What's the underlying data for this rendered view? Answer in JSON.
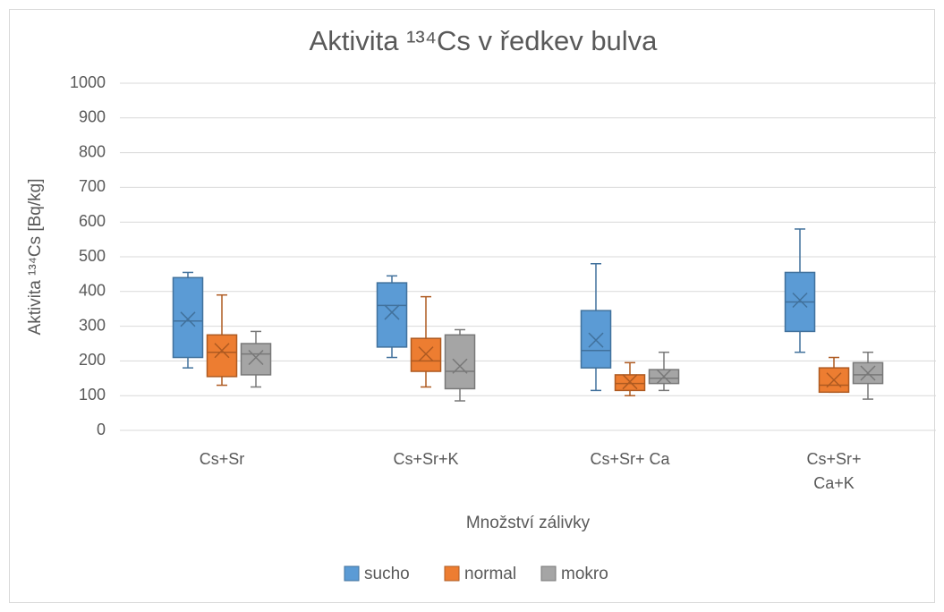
{
  "chart_data": {
    "type": "box",
    "title": "Aktivita ¹³⁴Cs v ředkev bulva",
    "y_label": "Aktivita ¹³⁴Cs [Bq/kg]",
    "x_label": "Množství zálivky",
    "categories": [
      [
        "Cs+Sr"
      ],
      [
        "Cs+Sr+K"
      ],
      [
        "Cs+Sr+  Ca"
      ],
      [
        "Cs+Sr+",
        "Ca+K"
      ]
    ],
    "ylim": [
      0,
      1000
    ],
    "yticks": [
      0,
      100,
      200,
      300,
      400,
      500,
      600,
      700,
      800,
      900,
      1000
    ],
    "grid": true,
    "legend": "bottom",
    "series": [
      {
        "name": "sucho",
        "color": "#5b9bd5",
        "edge": "#41719c",
        "min": [
          180,
          210,
          115,
          225
        ],
        "q1": [
          210,
          240,
          180,
          285
        ],
        "median": [
          315,
          360,
          230,
          370
        ],
        "q3": [
          440,
          425,
          345,
          455
        ],
        "max": [
          455,
          445,
          480,
          580
        ],
        "mean": [
          320,
          340,
          260,
          375
        ]
      },
      {
        "name": "normal",
        "color": "#ed7d31",
        "edge": "#ae5a21",
        "min": [
          130,
          125,
          100,
          110
        ],
        "q1": [
          155,
          170,
          115,
          110
        ],
        "median": [
          225,
          200,
          135,
          130
        ],
        "q3": [
          275,
          265,
          160,
          180
        ],
        "max": [
          390,
          385,
          195,
          210
        ],
        "mean": [
          230,
          220,
          140,
          145
        ]
      },
      {
        "name": "mokro",
        "color": "#a5a5a5",
        "edge": "#787878",
        "min": [
          125,
          85,
          115,
          90
        ],
        "q1": [
          160,
          120,
          135,
          135
        ],
        "median": [
          220,
          170,
          150,
          160
        ],
        "q3": [
          250,
          275,
          175,
          195
        ],
        "max": [
          285,
          290,
          225,
          225
        ],
        "mean": [
          210,
          185,
          155,
          165
        ]
      }
    ]
  }
}
